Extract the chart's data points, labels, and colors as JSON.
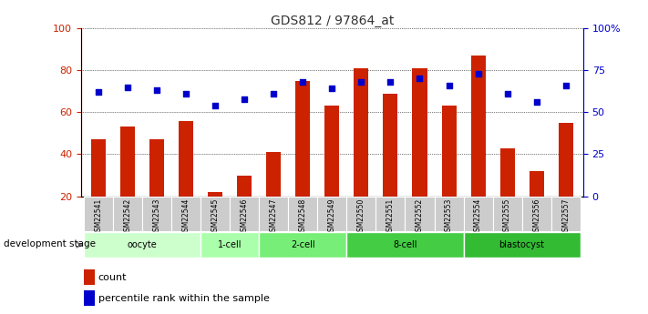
{
  "title": "GDS812 / 97864_at",
  "samples": [
    "GSM22541",
    "GSM22542",
    "GSM22543",
    "GSM22544",
    "GSM22545",
    "GSM22546",
    "GSM22547",
    "GSM22548",
    "GSM22549",
    "GSM22550",
    "GSM22551",
    "GSM22552",
    "GSM22553",
    "GSM22554",
    "GSM22555",
    "GSM22556",
    "GSM22557"
  ],
  "counts": [
    47,
    53,
    47,
    56,
    22,
    30,
    41,
    75,
    63,
    81,
    69,
    81,
    63,
    87,
    43,
    32,
    55
  ],
  "percentiles": [
    62,
    65,
    63,
    61,
    54,
    58,
    61,
    68,
    64,
    68,
    68,
    70,
    66,
    73,
    61,
    56,
    66
  ],
  "bar_color": "#cc2200",
  "dot_color": "#0000cc",
  "bar_bottom": 20,
  "ylim_left": [
    20,
    100
  ],
  "ylim_right": [
    0,
    100
  ],
  "yticks_left": [
    20,
    40,
    60,
    80,
    100
  ],
  "ytick_labels_right": [
    "0",
    "25",
    "50",
    "75",
    "100%"
  ],
  "groups": [
    {
      "name": "oocyte",
      "start": 0,
      "end": 4,
      "color": "#ccffcc"
    },
    {
      "name": "1-cell",
      "start": 4,
      "end": 6,
      "color": "#aaffaa"
    },
    {
      "name": "2-cell",
      "start": 6,
      "end": 9,
      "color": "#77ee77"
    },
    {
      "name": "8-cell",
      "start": 9,
      "end": 13,
      "color": "#44cc44"
    },
    {
      "name": "blastocyst",
      "start": 13,
      "end": 17,
      "color": "#33bb33"
    }
  ],
  "left_axis_color": "#cc2200",
  "right_axis_color": "#0000cc",
  "sample_label_bg": "#cccccc",
  "dev_stage_label": "development stage",
  "legend_count": "count",
  "legend_pct": "percentile rank within the sample"
}
